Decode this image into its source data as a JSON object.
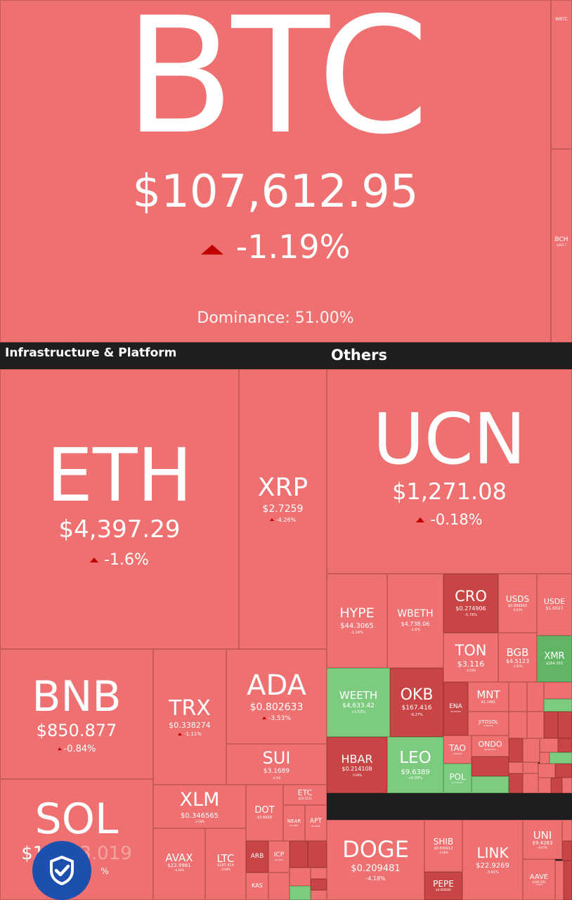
{
  "btc": {
    "symbol": "BTC",
    "price": "$107,612.95",
    "change": "-1.19%",
    "dominance": "Dominance: 51.00%"
  },
  "side": {
    "wbtc": "WBTC",
    "bch": "BCH",
    "bch_price": "$563.7"
  },
  "sections": {
    "infra": "Infrastructure & Platform",
    "others": "Others"
  },
  "eth": {
    "symbol": "ETH",
    "price": "$4,397.29",
    "change": "-1.6%"
  },
  "xrp": {
    "symbol": "XRP",
    "price": "$2.7259",
    "change": "-4.26%"
  },
  "bnb": {
    "symbol": "BNB",
    "price": "$850.877",
    "change": "-0.84%"
  },
  "trx": {
    "symbol": "TRX",
    "price": "$0.338274",
    "change": "-1.11%"
  },
  "ada": {
    "symbol": "ADA",
    "price": "$0.802633",
    "change": "-3.53%"
  },
  "sui": {
    "symbol": "SUI",
    "price": "$3.1689",
    "change": "-4.5%"
  },
  "sol": {
    "symbol": "SOL",
    "price": "$1",
    "price_tail": "3.019",
    "change": "%"
  },
  "xlm": {
    "symbol": "XLM",
    "price": "$0.346565",
    "change": "-3.58%"
  },
  "dot": {
    "symbol": "DOT",
    "price": "$3.6929"
  },
  "etc": {
    "symbol": "ETC",
    "price": "$20.1553"
  },
  "near": {
    "symbol": "NEAR",
    "price": "$2.3987"
  },
  "apt": {
    "symbol": "APT",
    "price": "$4.3926"
  },
  "avax": {
    "symbol": "AVAX",
    "price": "$22.9981",
    "change": "-4.34%"
  },
  "ltc": {
    "symbol": "LTC",
    "price": "$107.414",
    "change": "-3.98%"
  },
  "arb": {
    "symbol": "ARB"
  },
  "icp": {
    "symbol": "ICP",
    "price": "$4.7591"
  },
  "kas": {
    "symbol": "KAS"
  },
  "ucn": {
    "symbol": "UCN",
    "price": "$1,271.08",
    "change": "-0.18%"
  },
  "hype": {
    "symbol": "HYPE",
    "price": "$44.3065",
    "change": "-1.16%"
  },
  "wbeth": {
    "symbol": "WBETH",
    "price": "$4,738.06",
    "change": "-1.6%"
  },
  "cro": {
    "symbol": "CRO",
    "price": "$0.274906",
    "change": "-5.74%"
  },
  "usds": {
    "symbol": "USDS",
    "price": "$0.999692",
    "change": "-0.03%"
  },
  "usde": {
    "symbol": "USDE",
    "price": "$1.0027"
  },
  "ton": {
    "symbol": "TON",
    "price": "$3.116",
    "change": "-4.05%"
  },
  "bgb": {
    "symbol": "BGB",
    "price": "$4.5123",
    "change": "-3.00%"
  },
  "xmr": {
    "symbol": "XMR",
    "price": "$264.203"
  },
  "weeth": {
    "symbol": "WEETH",
    "price": "$4,633.42",
    "change": "+1.53%"
  },
  "okb": {
    "symbol": "OKB",
    "price": "$167.416",
    "change": "-6.27%"
  },
  "ena": {
    "symbol": "ENA",
    "price": "$0.63059"
  },
  "mnt": {
    "symbol": "MNT",
    "price": "$1.1481"
  },
  "jitosol": {
    "symbol": "JITOSOL",
    "price": "$343.94"
  },
  "hbar": {
    "symbol": "HBAR",
    "price": "$0.214108",
    "change": "-5.69%"
  },
  "leo": {
    "symbol": "LEO",
    "price": "$9.6389",
    "change": "+0.09%"
  },
  "tao": {
    "symbol": "TAO",
    "price": "$325.99"
  },
  "ondo": {
    "symbol": "ONDO",
    "price": "$0.875737"
  },
  "pol": {
    "symbol": "POL",
    "price": "$0.271322"
  },
  "doge": {
    "symbol": "DOGE",
    "price": "$0.209481",
    "change": "-4.18%"
  },
  "shib": {
    "symbol": "SHIB",
    "price": "$0.000012",
    "change": "-3.46%"
  },
  "pepe": {
    "symbol": "PEPE",
    "price": "$0.000009"
  },
  "link": {
    "symbol": "LINK",
    "price": "$22.9269",
    "change": "-3.61%"
  },
  "uni": {
    "symbol": "UNI",
    "price": "$9.4283",
    "change": "-4.67%"
  },
  "aave": {
    "symbol": "AAVE",
    "price": "$304.201",
    "change": "-3.94%"
  }
}
